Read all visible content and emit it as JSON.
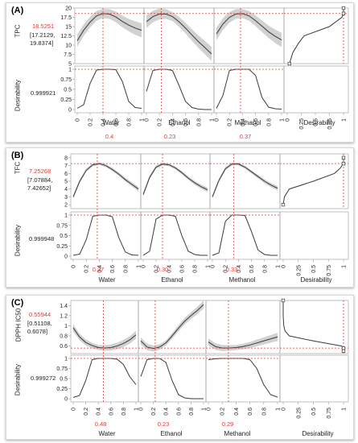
{
  "colors": {
    "band": "#c6c6c6",
    "line": "#3a3a3a",
    "crosshair": "#e8392f",
    "grid": "#9a9a9a",
    "panel_border": "#d9d9d9"
  },
  "factor_ticks": [
    "0",
    "0.2",
    "0.4",
    "0.6",
    "0.8",
    "1"
  ],
  "desirability_ticks": [
    "0",
    "0.25",
    "0.5",
    "0.75",
    "1"
  ],
  "des_yticks": [
    "0",
    "0.25",
    "0.5",
    "0.75",
    "1"
  ],
  "panels": [
    {
      "label": "(A)",
      "response": "TPC",
      "response_value": "18.5251",
      "response_ci": "[17.2129,",
      "response_ci2": "19.8374]",
      "response_ci3": "",
      "desirability_value": "0.999921",
      "resp_yticks": [
        "5",
        "7.5",
        "10",
        "12.5",
        "15",
        "17.5",
        "20"
      ],
      "factors": [
        {
          "name": "Water",
          "value": "0.4"
        },
        {
          "name": "Ethanol",
          "value": "0.23"
        },
        {
          "name": "Methanol",
          "value": "0.37"
        }
      ],
      "desirability_label": "Desirability"
    },
    {
      "label": "(B)",
      "response": "TFC",
      "response_value": "7.25268",
      "response_ci": "[7.07884,",
      "response_ci2": "7.42652]",
      "response_ci3": "",
      "desirability_value": "0.999948",
      "resp_yticks": [
        "2",
        "3",
        "4",
        "5",
        "6",
        "7",
        "8"
      ],
      "factors": [
        {
          "name": "Water",
          "value": "0.37"
        },
        {
          "name": "Ethanol",
          "value": "0.30"
        },
        {
          "name": "Methanol",
          "value": "0.33"
        }
      ],
      "desirability_label": "Desirability"
    },
    {
      "label": "(C)",
      "response": "DPPH IC50",
      "response_value": "0.55944",
      "response_ci": "[0.51108,",
      "response_ci2": "0.6078]",
      "response_ci3": "",
      "desirability_value": "0.999272",
      "resp_yticks": [
        "0.6",
        "0.8",
        "1",
        "1.2",
        "1.4"
      ],
      "factors": [
        {
          "name": "Water",
          "value": "0.48"
        },
        {
          "name": "Ethanol",
          "value": "0.23"
        },
        {
          "name": "Methanol",
          "value": "0.29"
        }
      ],
      "desirability_label": "Desirability"
    }
  ],
  "chart_data": [
    {
      "type": "line",
      "title": "",
      "response": "TPC",
      "ylim": [
        5,
        20
      ],
      "target": 18.5251,
      "series": [
        {
          "name": "Water",
          "x": [
            0,
            0.1,
            0.2,
            0.3,
            0.4,
            0.5,
            0.6,
            0.7,
            0.8,
            0.9,
            1.0
          ],
          "y": [
            11.2,
            14.0,
            16.2,
            17.9,
            18.5,
            18.4,
            17.6,
            16.4,
            15.4,
            14.6,
            14.0
          ]
        },
        {
          "name": "Ethanol",
          "x": [
            0,
            0.1,
            0.2,
            0.3,
            0.4,
            0.5,
            0.6,
            0.7,
            0.8,
            0.9,
            1.0
          ],
          "y": [
            16.3,
            17.7,
            18.4,
            18.4,
            17.7,
            16.3,
            14.6,
            12.7,
            10.9,
            9.3,
            7.6
          ]
        },
        {
          "name": "Methanol",
          "x": [
            0,
            0.1,
            0.2,
            0.3,
            0.4,
            0.5,
            0.6,
            0.7,
            0.8,
            0.9,
            1.0
          ],
          "y": [
            13.0,
            15.7,
            17.5,
            18.4,
            18.5,
            17.9,
            16.6,
            15.1,
            13.6,
            12.4,
            11.4
          ]
        }
      ],
      "desirability": {
        "x": [
          0,
          0.1,
          0.2,
          0.3,
          0.4,
          0.5,
          0.6,
          0.7,
          0.8,
          0.9,
          1.0
        ],
        "Water": [
          0.03,
          0.12,
          0.65,
          0.98,
          1.0,
          1.0,
          0.99,
          0.7,
          0.2,
          0.05,
          0.03
        ],
        "Ethanol": [
          0.45,
          0.97,
          1.0,
          1.0,
          0.97,
          0.6,
          0.2,
          0.05,
          0.01,
          0.0,
          0.0
        ],
        "Methanol": [
          0.03,
          0.35,
          0.97,
          1.0,
          1.0,
          1.0,
          0.85,
          0.3,
          0.06,
          0.02,
          0.01
        ]
      },
      "des_function": {
        "y": [
          5,
          5.5,
          8,
          10.5,
          12.5,
          15,
          17.5,
          18.5,
          19.5,
          20
        ],
        "d": [
          0.04,
          0.05,
          0.1,
          0.2,
          0.3,
          0.75,
          0.97,
          1.0,
          1.0,
          1.0
        ]
      }
    },
    {
      "type": "line",
      "title": "",
      "response": "TFC",
      "ylim": [
        1.5,
        8.5
      ],
      "target": 7.25268,
      "series": [
        {
          "name": "Water",
          "x": [
            0,
            0.1,
            0.2,
            0.3,
            0.4,
            0.5,
            0.6,
            0.7,
            0.8,
            0.9,
            1.0
          ],
          "y": [
            3.0,
            5.0,
            6.4,
            7.1,
            7.25,
            7.0,
            6.5,
            5.9,
            5.2,
            4.6,
            4.0
          ]
        },
        {
          "name": "Ethanol",
          "x": [
            0,
            0.1,
            0.2,
            0.3,
            0.4,
            0.5,
            0.6,
            0.7,
            0.8,
            0.9,
            1.0
          ],
          "y": [
            3.3,
            5.5,
            6.8,
            7.2,
            7.1,
            6.7,
            6.1,
            5.4,
            4.8,
            4.3,
            3.9
          ]
        },
        {
          "name": "Methanol",
          "x": [
            0,
            0.1,
            0.2,
            0.3,
            0.4,
            0.5,
            0.6,
            0.7,
            0.8,
            0.9,
            1.0
          ],
          "y": [
            3.0,
            5.1,
            6.6,
            7.2,
            7.2,
            6.8,
            6.2,
            5.6,
            5.0,
            4.5,
            4.1
          ]
        }
      ],
      "desirability": {
        "x": [
          0,
          0.1,
          0.2,
          0.3,
          0.4,
          0.5,
          0.6,
          0.7,
          0.8,
          0.9,
          1.0
        ],
        "Water": [
          0.02,
          0.05,
          0.4,
          0.97,
          1.0,
          1.0,
          0.96,
          0.45,
          0.1,
          0.03,
          0.02
        ],
        "Ethanol": [
          0.02,
          0.12,
          0.9,
          1.0,
          1.0,
          0.97,
          0.5,
          0.12,
          0.04,
          0.02,
          0.02
        ],
        "Methanol": [
          0.02,
          0.08,
          0.85,
          1.0,
          1.0,
          0.99,
          0.6,
          0.15,
          0.04,
          0.02,
          0.02
        ]
      },
      "des_function": {
        "y": [
          2,
          3,
          4,
          5,
          6,
          6.7,
          7.2,
          7.5,
          8
        ],
        "d": [
          0.0,
          0.02,
          0.1,
          0.5,
          0.85,
          0.95,
          0.99,
          1.0,
          1.0
        ]
      }
    },
    {
      "type": "line",
      "title": "",
      "response": "DPPH IC50",
      "ylim": [
        0.45,
        1.5
      ],
      "target": 0.55944,
      "series": [
        {
          "name": "Water",
          "x": [
            0,
            0.1,
            0.2,
            0.3,
            0.4,
            0.5,
            0.6,
            0.7,
            0.8,
            0.9,
            1.0
          ],
          "y": [
            0.96,
            0.78,
            0.67,
            0.61,
            0.57,
            0.56,
            0.57,
            0.6,
            0.65,
            0.72,
            0.82
          ]
        },
        {
          "name": "Ethanol",
          "x": [
            0,
            0.1,
            0.2,
            0.3,
            0.4,
            0.5,
            0.6,
            0.7,
            0.8,
            0.9,
            1.0
          ],
          "y": [
            0.7,
            0.58,
            0.55,
            0.58,
            0.66,
            0.8,
            0.95,
            1.09,
            1.2,
            1.3,
            1.42
          ]
        },
        {
          "name": "Methanol",
          "x": [
            0,
            0.1,
            0.2,
            0.3,
            0.4,
            0.5,
            0.6,
            0.7,
            0.8,
            0.9,
            1.0
          ],
          "y": [
            0.68,
            0.59,
            0.56,
            0.56,
            0.57,
            0.59,
            0.62,
            0.66,
            0.7,
            0.74,
            0.78
          ]
        }
      ],
      "desirability": {
        "x": [
          0,
          0.1,
          0.2,
          0.3,
          0.4,
          0.5,
          0.6,
          0.7,
          0.8,
          0.9,
          1.0
        ],
        "Water": [
          0.03,
          0.08,
          0.45,
          0.97,
          1.0,
          1.0,
          1.0,
          0.98,
          0.85,
          0.55,
          0.35
        ],
        "Ethanol": [
          0.55,
          0.97,
          1.0,
          1.0,
          0.9,
          0.45,
          0.1,
          0.02,
          0.0,
          0.0,
          0.0
        ],
        "Methanol": [
          0.97,
          0.99,
          1.0,
          1.0,
          1.0,
          1.0,
          0.97,
          0.75,
          0.35,
          0.1,
          0.04
        ]
      },
      "des_function": {
        "y": [
          0.5,
          0.55,
          0.6,
          0.7,
          0.8,
          0.9,
          1.0,
          1.2,
          1.4,
          1.5
        ],
        "d": [
          1.0,
          1.0,
          0.97,
          0.5,
          0.1,
          0.03,
          0.01,
          0.0,
          0.0,
          0.0
        ]
      }
    }
  ]
}
